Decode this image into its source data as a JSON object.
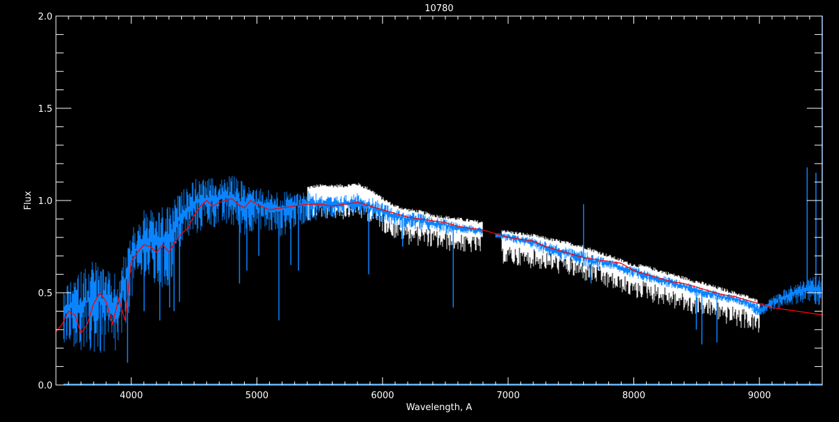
{
  "chart_data": {
    "type": "line",
    "title": "10780",
    "xlabel": "Wavelength, A",
    "ylabel": "Flux",
    "xlim": [
      3400,
      9500
    ],
    "ylim": [
      0.0,
      2.0
    ],
    "xticks": [
      4000,
      5000,
      6000,
      7000,
      8000,
      9000
    ],
    "xtick_labels": [
      "4000",
      "5000",
      "6000",
      "7000",
      "8000",
      "9000"
    ],
    "yticks": [
      0.0,
      0.5,
      1.0,
      1.5,
      2.0
    ],
    "ytick_labels": [
      "0.0",
      "0.5",
      "1.0",
      "1.5",
      "2.0"
    ],
    "x_minor_step": 100,
    "y_minor_step": 0.1,
    "grid": false,
    "colors": {
      "background": "#000000",
      "axes": "#ffffff",
      "observed": "#0a84ff",
      "white_spectrum": "#ffffff",
      "model": "#ff0000"
    },
    "series": [
      {
        "key": "model",
        "x": [
          3400,
          3450,
          3500,
          3550,
          3600,
          3650,
          3700,
          3750,
          3800,
          3850,
          3900,
          3950,
          4000,
          4050,
          4100,
          4150,
          4200,
          4250,
          4300,
          4350,
          4400,
          4450,
          4500,
          4550,
          4600,
          4650,
          4700,
          4750,
          4800,
          4850,
          4900,
          4950,
          5000,
          5100,
          5200,
          5300,
          5400,
          5500,
          5600,
          5700,
          5800,
          5900,
          6000,
          6100,
          6200,
          6300,
          6400,
          6500,
          6600,
          6700,
          6800,
          6900,
          7000,
          7100,
          7200,
          7300,
          7400,
          7500,
          7600,
          7700,
          7800,
          7900,
          8000,
          8100,
          8200,
          8300,
          8400,
          8500,
          8600,
          8700,
          8800,
          8900,
          9000,
          9100,
          9200,
          9300,
          9400,
          9500
        ],
        "y": [
          0.29,
          0.33,
          0.4,
          0.38,
          0.28,
          0.33,
          0.44,
          0.5,
          0.45,
          0.33,
          0.47,
          0.35,
          0.67,
          0.72,
          0.76,
          0.75,
          0.72,
          0.76,
          0.72,
          0.78,
          0.82,
          0.85,
          0.92,
          0.97,
          1.0,
          0.97,
          0.99,
          1.0,
          1.01,
          0.98,
          0.96,
          1.0,
          0.98,
          0.95,
          0.96,
          0.97,
          0.98,
          0.98,
          0.97,
          0.98,
          0.99,
          0.97,
          0.95,
          0.93,
          0.91,
          0.9,
          0.89,
          0.88,
          0.86,
          0.85,
          0.84,
          0.82,
          0.8,
          0.79,
          0.78,
          0.75,
          0.73,
          0.71,
          0.69,
          0.68,
          0.67,
          0.66,
          0.62,
          0.6,
          0.58,
          0.56,
          0.55,
          0.53,
          0.51,
          0.49,
          0.48,
          0.46,
          0.44,
          0.42,
          0.41,
          0.4,
          0.39,
          0.38
        ]
      },
      {
        "key": "observed",
        "x": [
          3460,
          3500,
          3600,
          3700,
          3800,
          3900,
          4000,
          4100,
          4200,
          4300,
          4400,
          4500,
          4600,
          4700,
          4800,
          4900,
          5000,
          5100,
          5200,
          5300,
          5400,
          5500,
          5600,
          5700,
          5800,
          5900,
          6000,
          6100,
          6200,
          6300,
          6400,
          6500,
          6600,
          6700,
          6800,
          6900,
          7000,
          7100,
          7200,
          7300,
          7400,
          7500,
          7600,
          7700,
          7800,
          7900,
          8000,
          8100,
          8200,
          8300,
          8400,
          8500,
          8600,
          8700,
          8800,
          8900,
          9000,
          9100,
          9200,
          9300,
          9400,
          9490
        ],
        "upper": [
          0.5,
          0.55,
          0.62,
          0.7,
          0.62,
          0.6,
          0.85,
          0.95,
          0.95,
          0.98,
          1.05,
          1.12,
          1.12,
          1.12,
          1.14,
          1.1,
          1.08,
          1.06,
          1.05,
          1.05,
          1.06,
          1.04,
          1.02,
          1.03,
          1.04,
          1.02,
          0.99,
          0.96,
          0.94,
          0.93,
          0.91,
          0.9,
          0.88,
          0.87,
          0.85,
          0.83,
          0.82,
          0.81,
          0.8,
          0.78,
          0.76,
          0.74,
          0.73,
          0.7,
          0.69,
          0.66,
          0.64,
          0.62,
          0.6,
          0.58,
          0.56,
          0.54,
          0.52,
          0.5,
          0.49,
          0.47,
          0.44,
          0.48,
          0.52,
          0.56,
          0.58,
          0.6
        ],
        "lower": [
          0.22,
          0.25,
          0.15,
          0.15,
          0.15,
          0.15,
          0.45,
          0.55,
          0.5,
          0.5,
          0.75,
          0.8,
          0.85,
          0.85,
          0.85,
          0.8,
          0.85,
          0.82,
          0.8,
          0.85,
          0.88,
          0.9,
          0.9,
          0.92,
          0.93,
          0.9,
          0.88,
          0.86,
          0.84,
          0.84,
          0.83,
          0.82,
          0.82,
          0.82,
          0.8,
          0.8,
          0.77,
          0.76,
          0.74,
          0.7,
          0.68,
          0.66,
          0.64,
          0.62,
          0.63,
          0.6,
          0.58,
          0.56,
          0.54,
          0.52,
          0.5,
          0.48,
          0.47,
          0.45,
          0.44,
          0.42,
          0.36,
          0.4,
          0.42,
          0.44,
          0.44,
          0.42
        ],
        "lines": [
          [
            3970,
            0.12
          ],
          [
            4102,
            0.4
          ],
          [
            4227,
            0.35
          ],
          [
            4305,
            0.42
          ],
          [
            4340,
            0.4
          ],
          [
            4383,
            0.45
          ],
          [
            4861,
            0.55
          ],
          [
            4920,
            0.62
          ],
          [
            5015,
            0.7
          ],
          [
            5175,
            0.35
          ],
          [
            5270,
            0.65
          ],
          [
            5330,
            0.62
          ],
          [
            5890,
            0.6
          ],
          [
            6160,
            0.75
          ],
          [
            6563,
            0.42
          ],
          [
            7600,
            0.98
          ],
          [
            7660,
            0.55
          ],
          [
            8498,
            0.3
          ],
          [
            8542,
            0.22
          ],
          [
            8662,
            0.23
          ],
          [
            9380,
            1.18
          ],
          [
            9450,
            1.15
          ],
          [
            9500,
            2.0
          ]
        ]
      },
      {
        "key": "white_spectrum",
        "x": [
          5400,
          5500,
          5600,
          5700,
          5800,
          5900,
          6000,
          6100,
          6200,
          6300,
          6400,
          6500,
          6600,
          6700,
          6800,
          7000,
          7200,
          7400,
          7600,
          7800,
          8000,
          8100,
          8200,
          8300,
          8400,
          8500,
          8600,
          8700,
          8800,
          8900,
          9000
        ],
        "y": [
          1.07,
          1.08,
          1.08,
          1.08,
          1.09,
          1.06,
          1.01,
          0.97,
          0.95,
          0.94,
          0.92,
          0.91,
          0.9,
          0.89,
          0.88,
          0.83,
          0.81,
          0.78,
          0.75,
          0.7,
          0.65,
          0.64,
          0.62,
          0.6,
          0.58,
          0.56,
          0.54,
          0.52,
          0.5,
          0.48,
          0.45
        ]
      }
    ]
  }
}
